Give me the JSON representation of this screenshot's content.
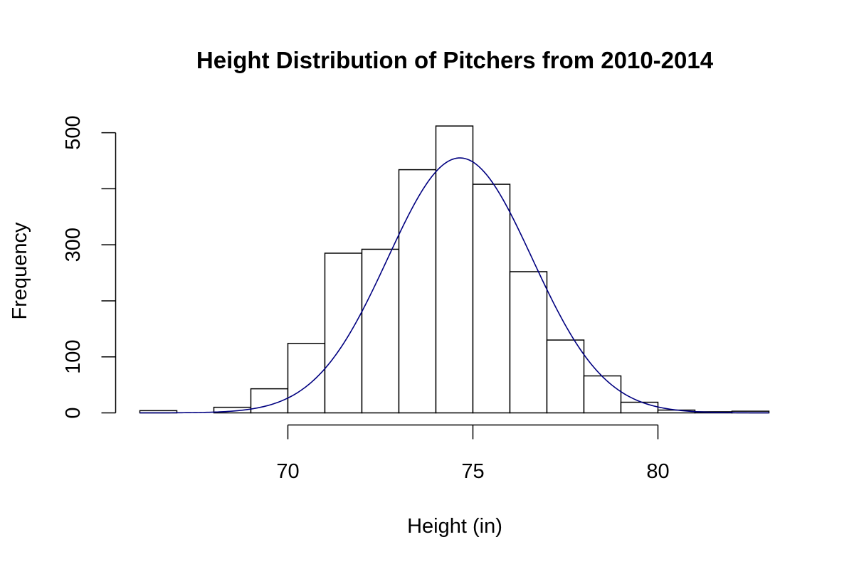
{
  "chart_data": {
    "type": "bar",
    "title": "Height Distribution of Pitchers from 2010-2014",
    "xlabel": "Height (in)",
    "ylabel": "Frequency",
    "xlim": [
      66,
      83
    ],
    "ylim": [
      0,
      512
    ],
    "x_ticks": [
      70,
      75,
      80
    ],
    "y_ticks": [
      0,
      100,
      200,
      300,
      400,
      500
    ],
    "y_tick_labels": [
      "0",
      "100",
      "",
      "300",
      "",
      "500"
    ],
    "bins": [
      {
        "x0": 66,
        "x1": 67,
        "count": 4
      },
      {
        "x0": 67,
        "x1": 68,
        "count": 0
      },
      {
        "x0": 68,
        "x1": 69,
        "count": 10
      },
      {
        "x0": 69,
        "x1": 70,
        "count": 43
      },
      {
        "x0": 70,
        "x1": 71,
        "count": 124
      },
      {
        "x0": 71,
        "x1": 72,
        "count": 285
      },
      {
        "x0": 72,
        "x1": 73,
        "count": 292
      },
      {
        "x0": 73,
        "x1": 74,
        "count": 434
      },
      {
        "x0": 74,
        "x1": 75,
        "count": 512
      },
      {
        "x0": 75,
        "x1": 76,
        "count": 408
      },
      {
        "x0": 76,
        "x1": 77,
        "count": 252
      },
      {
        "x0": 77,
        "x1": 78,
        "count": 130
      },
      {
        "x0": 78,
        "x1": 79,
        "count": 66
      },
      {
        "x0": 79,
        "x1": 80,
        "count": 19
      },
      {
        "x0": 80,
        "x1": 81,
        "count": 5
      },
      {
        "x0": 81,
        "x1": 82,
        "count": 2
      },
      {
        "x0": 82,
        "x1": 83,
        "count": 3
      }
    ],
    "density_curve": {
      "type": "normal",
      "mean": 74.65,
      "sd": 1.95,
      "peak": 455,
      "x_range": [
        66,
        83
      ],
      "color": "#000080"
    },
    "bar_fill": "#ffffff",
    "bar_stroke": "#000000",
    "grid": false
  }
}
